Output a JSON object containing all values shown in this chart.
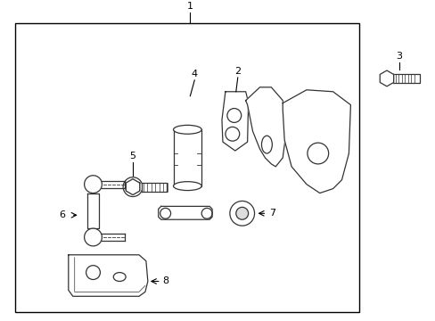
{
  "bg_color": "#ffffff",
  "line_color": "#000000",
  "part_color": "#333333",
  "fig_width": 4.89,
  "fig_height": 3.6,
  "dpi": 100
}
